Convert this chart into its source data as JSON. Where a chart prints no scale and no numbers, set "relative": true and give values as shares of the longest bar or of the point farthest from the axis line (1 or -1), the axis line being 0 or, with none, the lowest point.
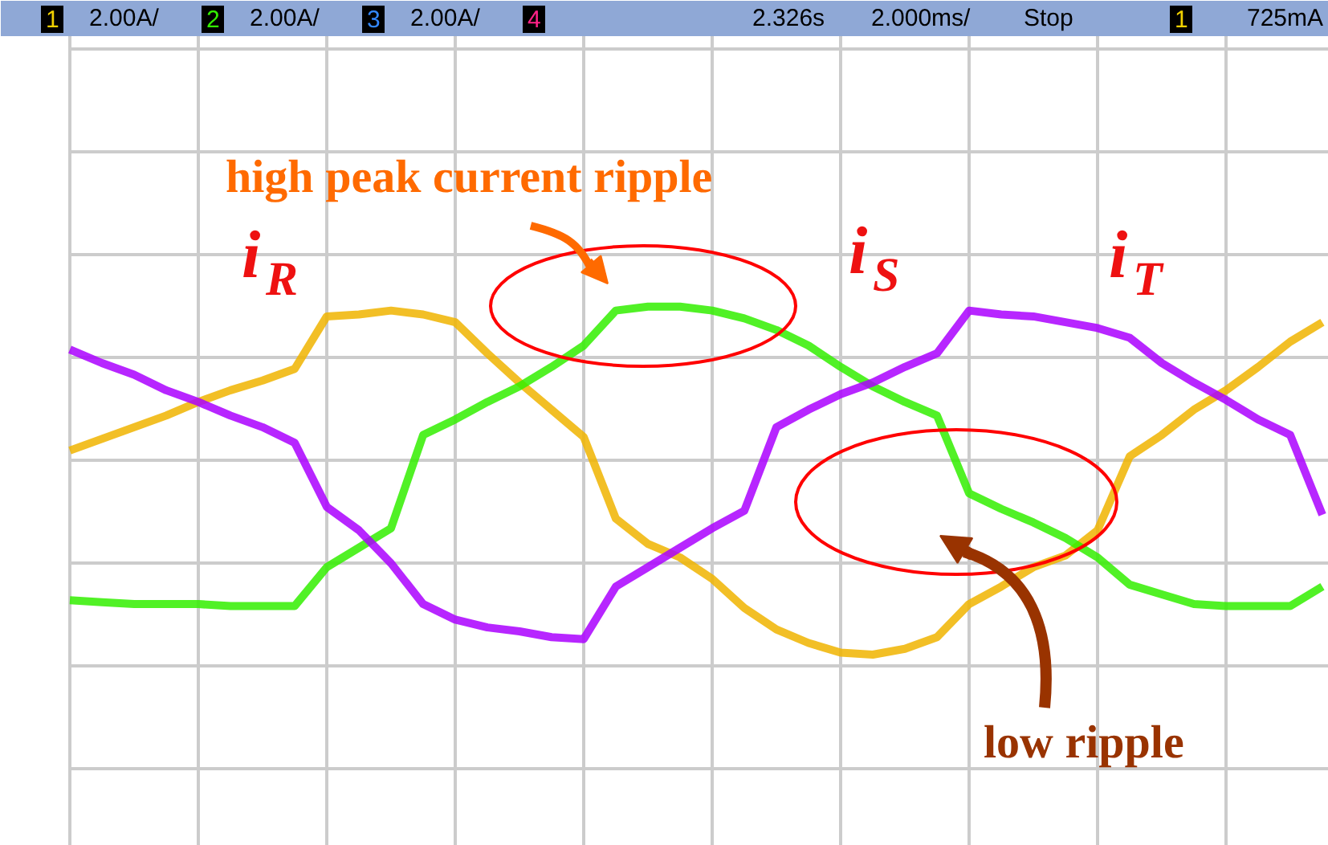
{
  "chart_data": {
    "type": "line",
    "relative": true,
    "grid": true,
    "legend": false,
    "marker": "none",
    "line_style": "solid",
    "categories": [
      null,
      null,
      null,
      null,
      null,
      null,
      null,
      null,
      null,
      null,
      null,
      null,
      null,
      null,
      null,
      null,
      null,
      null,
      null,
      null,
      null,
      null,
      null,
      null,
      null,
      null,
      null,
      null,
      null,
      null,
      null,
      null,
      null,
      null,
      null,
      null,
      null,
      null,
      null,
      null
    ],
    "series": [
      {
        "name": "i$_{R}$",
        "color": "#f0b400",
        "values": [
          0.05,
          0.11,
          0.17,
          0.23,
          0.3,
          0.36,
          0.41,
          0.47,
          0.74,
          0.75,
          0.77,
          0.75,
          0.71,
          0.55,
          0.4,
          0.26,
          0.12,
          -0.3,
          -0.43,
          -0.5,
          -0.61,
          -0.76,
          -0.87,
          -0.94,
          -0.99,
          -1.0,
          -0.97,
          -0.91,
          -0.74,
          -0.65,
          -0.55,
          -0.49,
          -0.36,
          0.02,
          0.13,
          0.26,
          0.36,
          0.48,
          0.61,
          0.71
        ]
      },
      {
        "name": "i$_{S}$",
        "color": "#33ee00",
        "values": [
          -0.72,
          -0.73,
          -0.74,
          -0.74,
          -0.74,
          -0.75,
          -0.75,
          -0.75,
          -0.55,
          -0.45,
          -0.35,
          0.13,
          0.21,
          0.3,
          0.38,
          0.48,
          0.59,
          0.77,
          0.79,
          0.79,
          0.77,
          0.73,
          0.67,
          0.59,
          0.48,
          0.38,
          0.3,
          0.23,
          -0.17,
          -0.25,
          -0.32,
          -0.4,
          -0.5,
          -0.64,
          -0.69,
          -0.74,
          -0.75,
          -0.75,
          -0.75,
          -0.65
        ]
      },
      {
        "name": "i$_{T}$",
        "color": "#aa00ff",
        "values": [
          0.57,
          0.5,
          0.44,
          0.36,
          0.3,
          0.23,
          0.17,
          0.09,
          -0.24,
          -0.36,
          -0.53,
          -0.74,
          -0.82,
          -0.86,
          -0.88,
          -0.91,
          -0.92,
          -0.65,
          -0.55,
          -0.45,
          -0.35,
          -0.26,
          0.17,
          0.26,
          0.34,
          0.4,
          0.48,
          0.55,
          0.77,
          0.75,
          0.74,
          0.71,
          0.68,
          0.63,
          0.5,
          0.4,
          0.31,
          0.21,
          0.13,
          -0.28
        ]
      }
    ],
    "annotations": [
      "1",
      "2.00A/",
      "2",
      "2.00A/",
      "3",
      "2.00A/",
      "4",
      "2.326s",
      "2.000ms/",
      "Stop",
      "1",
      "725mA",
      "high peak current ripple",
      "low ripple"
    ]
  }
}
